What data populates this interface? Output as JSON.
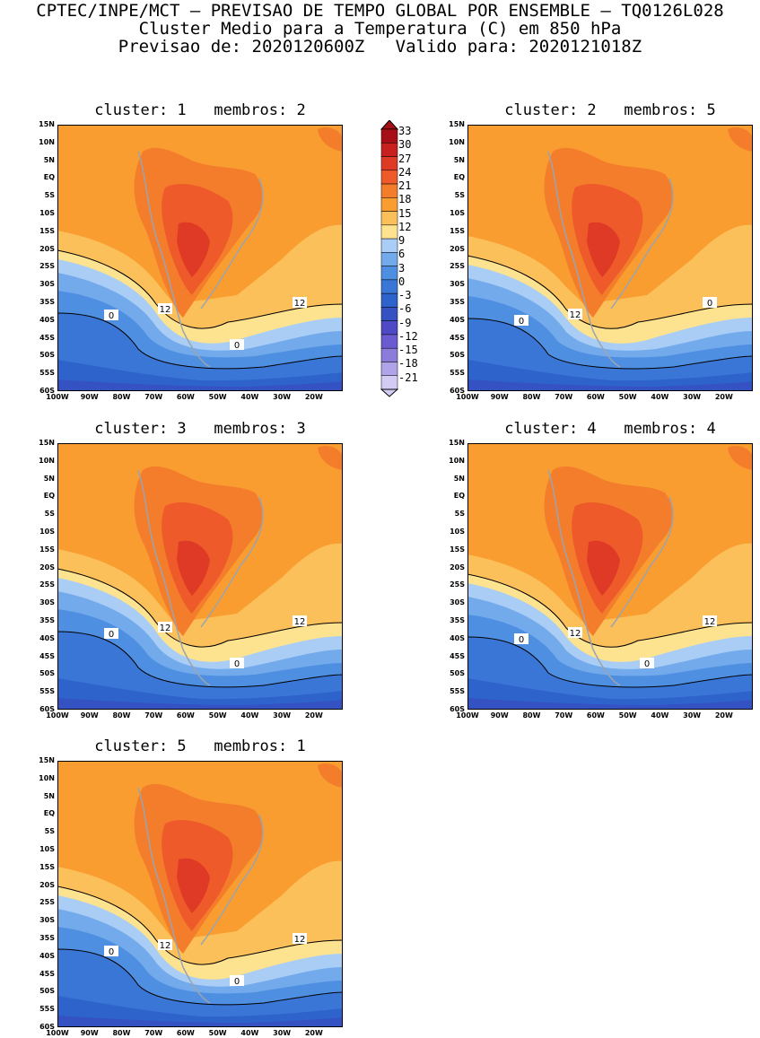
{
  "header": {
    "line1": "CPTEC/INPE/MCT – PREVISAO DE TEMPO GLOBAL POR ENSEMBLE – TQ0126L028",
    "line2": "Cluster Medio para a Temperatura (C) em 850 hPa",
    "line3": "Previsao de: 2020120600Z   Valido para: 2020121018Z"
  },
  "lat_labels": [
    "15N",
    "10N",
    "5N",
    "EQ",
    "5S",
    "10S",
    "15S",
    "20S",
    "25S",
    "30S",
    "35S",
    "40S",
    "45S",
    "50S",
    "55S",
    "60S"
  ],
  "lon_labels": [
    "100W",
    "90W",
    "80W",
    "70W",
    "60W",
    "50W",
    "40W",
    "30W",
    "20W"
  ],
  "colorbar": {
    "labels": [
      "33",
      "30",
      "27",
      "24",
      "21",
      "18",
      "15",
      "12",
      "9",
      "6",
      "3",
      "0",
      "-3",
      "-6",
      "-9",
      "-12",
      "-15",
      "-18",
      "-21"
    ],
    "colors": [
      "#a50f15",
      "#c8201e",
      "#de3a26",
      "#ee5a2a",
      "#f47d2c",
      "#f99d30",
      "#fcc05a",
      "#fde390",
      "#a9cdf5",
      "#73aaeb",
      "#4f8fe1",
      "#3a76d6",
      "#2f63cc",
      "#3452c2",
      "#4e49c4",
      "#6b5bd0",
      "#8b7cdc",
      "#b0a3e8",
      "#d3cbf3"
    ]
  },
  "panels": [
    {
      "title": "cluster: 1   membros: 2",
      "contour_labels": [
        "12",
        "12",
        "0",
        "0"
      ]
    },
    {
      "title": "cluster: 2   membros: 5",
      "contour_labels": [
        "12",
        "0",
        "0"
      ]
    },
    {
      "title": "cluster: 3   membros: 3",
      "contour_labels": [
        "12",
        "12",
        "0",
        "0"
      ]
    },
    {
      "title": "cluster: 4   membros: 4",
      "contour_labels": [
        "12",
        "12",
        "0",
        "0"
      ]
    },
    {
      "title": "cluster: 5   membros: 1",
      "contour_labels": [
        "12",
        "12",
        "0",
        "0"
      ]
    }
  ]
}
